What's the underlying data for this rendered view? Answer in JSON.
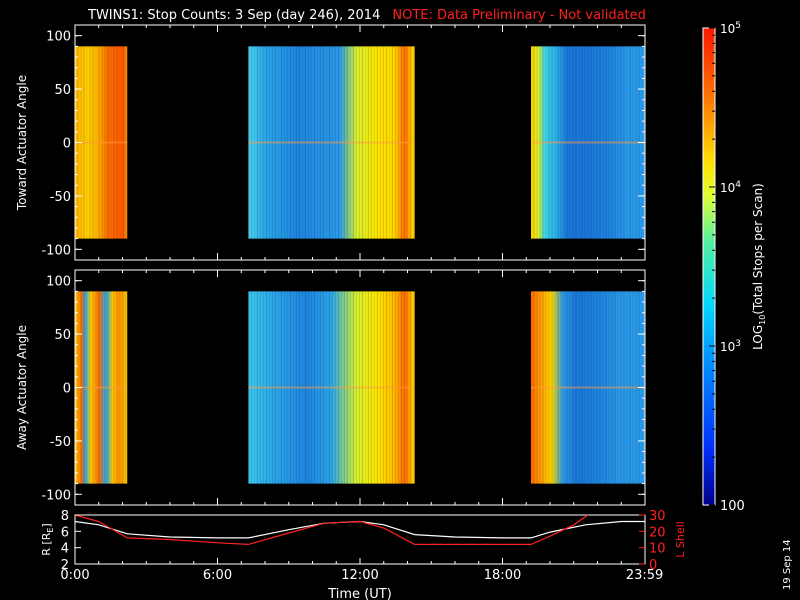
{
  "header": {
    "title": "TWINS1: Stop Counts:  3 Sep (day 246), 2014",
    "note": "NOTE: Data Preliminary - Not validated"
  },
  "stamp": "19 Sep 14",
  "colors": {
    "background": "#000000",
    "axes": "#ffffff",
    "note": "#ff2020",
    "lshell": "#ff2020",
    "r_line": "#ffffff"
  },
  "chart_data": [
    {
      "type": "heatmap",
      "id": "toward",
      "ylabel": "Toward Actuator Angle",
      "ylim": [
        -110,
        110
      ],
      "yticks": [
        100,
        50,
        0,
        -50,
        -100
      ],
      "xlim_hours": [
        0,
        24
      ],
      "data_extent_deg": [
        -90,
        90
      ],
      "blocks": [
        {
          "start": 0.0,
          "end": 2.2,
          "profile": [
            [
              0,
              "#ffb300"
            ],
            [
              0.25,
              "#ffd200"
            ],
            [
              0.45,
              "#ffb000"
            ],
            [
              0.62,
              "#ff7000"
            ],
            [
              0.85,
              "#ff6000"
            ],
            [
              0.93,
              "#ff5a00"
            ],
            [
              1,
              "#ffa000"
            ]
          ]
        },
        {
          "start": 7.3,
          "end": 14.3,
          "profile": [
            [
              0,
              "#4dd4f0"
            ],
            [
              0.1,
              "#2aa8ea"
            ],
            [
              0.3,
              "#1f86e0"
            ],
            [
              0.55,
              "#2a9bea"
            ],
            [
              0.65,
              "#d8f030"
            ],
            [
              0.78,
              "#ffe600"
            ],
            [
              0.88,
              "#ffd800"
            ],
            [
              0.94,
              "#ff6a00"
            ],
            [
              0.97,
              "#ffb000"
            ],
            [
              1,
              "#ffe000"
            ]
          ]
        },
        {
          "start": 19.2,
          "end": 23.99,
          "profile": [
            [
              0,
              "#ffd200"
            ],
            [
              0.06,
              "#e8f020"
            ],
            [
              0.12,
              "#3ed6e8"
            ],
            [
              0.22,
              "#2bb0e8"
            ],
            [
              0.32,
              "#1a78dc"
            ],
            [
              0.5,
              "#1a78dc"
            ],
            [
              0.7,
              "#1f86e0"
            ],
            [
              0.85,
              "#2a9bea"
            ],
            [
              1,
              "#2a9bea"
            ]
          ]
        }
      ]
    },
    {
      "type": "heatmap",
      "id": "away",
      "ylabel": "Away Actuator Angle",
      "ylim": [
        -110,
        110
      ],
      "yticks": [
        100,
        50,
        0,
        -50,
        -100
      ],
      "xlim_hours": [
        0,
        24
      ],
      "data_extent_deg": [
        -90,
        90
      ],
      "blocks": [
        {
          "start": 0.0,
          "end": 2.2,
          "profile": [
            [
              0,
              "#ffd200"
            ],
            [
              0.12,
              "#ff6a00"
            ],
            [
              0.2,
              "#2aa8ea"
            ],
            [
              0.3,
              "#ffd200"
            ],
            [
              0.45,
              "#ff7000"
            ],
            [
              0.6,
              "#2aa8ea"
            ],
            [
              0.72,
              "#ffc800"
            ],
            [
              0.85,
              "#ff9000"
            ],
            [
              1,
              "#ffd000"
            ]
          ]
        },
        {
          "start": 7.3,
          "end": 14.3,
          "profile": [
            [
              0,
              "#3ec8f0"
            ],
            [
              0.15,
              "#2aa8ea"
            ],
            [
              0.35,
              "#1f86e0"
            ],
            [
              0.5,
              "#2aa8ea"
            ],
            [
              0.65,
              "#d8f030"
            ],
            [
              0.78,
              "#ffe600"
            ],
            [
              0.88,
              "#ffb800"
            ],
            [
              0.94,
              "#ff6a00"
            ],
            [
              1,
              "#ffe000"
            ]
          ]
        },
        {
          "start": 19.2,
          "end": 23.99,
          "profile": [
            [
              0,
              "#ff6a00"
            ],
            [
              0.08,
              "#ff9a00"
            ],
            [
              0.18,
              "#ffd800"
            ],
            [
              0.28,
              "#2a9bea"
            ],
            [
              0.4,
              "#1a78dc"
            ],
            [
              0.6,
              "#1f86e0"
            ],
            [
              0.8,
              "#2a9bea"
            ],
            [
              1,
              "#2a9bea"
            ]
          ]
        }
      ]
    },
    {
      "type": "line",
      "id": "orbit",
      "ylabel": "R [R",
      "ylabel_sub": "E",
      "ylabel_right": "L Shell",
      "xlabel": "Time (UT)",
      "xlim_hours": [
        0,
        24
      ],
      "xticks": [
        {
          "h": 0,
          "label": "0:00"
        },
        {
          "h": 6,
          "label": "6:00"
        },
        {
          "h": 12,
          "label": "12:00"
        },
        {
          "h": 18,
          "label": "18:00"
        },
        {
          "h": 23.983,
          "label": "23:59"
        }
      ],
      "ylim_left": [
        2,
        8
      ],
      "yticks_left": [
        2,
        4,
        6,
        8
      ],
      "ylim_right": [
        0,
        30
      ],
      "yticks_right": [
        0,
        10,
        20,
        30
      ],
      "series": [
        {
          "axis": "left",
          "x": [
            0,
            1,
            2.2,
            4,
            6,
            7.3,
            9,
            10.5,
            12,
            13,
            14.3,
            16,
            18,
            19.2,
            20,
            21.5,
            23,
            24
          ],
          "y": [
            7.2,
            6.8,
            5.7,
            5.3,
            5.2,
            5.2,
            6.2,
            7.0,
            7.2,
            6.8,
            5.6,
            5.3,
            5.2,
            5.2,
            5.9,
            6.8,
            7.2,
            7.2
          ]
        },
        {
          "axis": "right",
          "x": [
            0,
            1,
            2.2,
            4,
            6,
            7.3,
            9,
            10.5,
            12,
            13,
            14.3,
            16,
            18,
            19.2,
            20,
            21,
            21.6
          ],
          "y": [
            30,
            26,
            16,
            15,
            13,
            12,
            19,
            25,
            26,
            22,
            12,
            12,
            12,
            12,
            17,
            24,
            30
          ]
        }
      ]
    },
    {
      "type": "heatmap",
      "id": "colorbar",
      "ylabel": "LOG",
      "ylabel_sub": "10",
      "ylabel_rest": "(Total Stops per Scan)",
      "scale": "log",
      "range": [
        100,
        100000
      ],
      "ticks": [
        {
          "value": 100000,
          "base": "10",
          "exp": "5"
        },
        {
          "value": 10000,
          "base": "10",
          "exp": "4"
        },
        {
          "value": 1000,
          "base": "10",
          "exp": "3"
        },
        {
          "value": 100,
          "label": "100"
        }
      ],
      "gradient": [
        [
          0,
          "#00008a"
        ],
        [
          0.12,
          "#0030ff"
        ],
        [
          0.3,
          "#0090ff"
        ],
        [
          0.42,
          "#00d8ff"
        ],
        [
          0.55,
          "#50f0a0"
        ],
        [
          0.65,
          "#e0ff30"
        ],
        [
          0.72,
          "#ffe000"
        ],
        [
          0.85,
          "#ff7800"
        ],
        [
          1,
          "#ff1800"
        ]
      ]
    }
  ]
}
